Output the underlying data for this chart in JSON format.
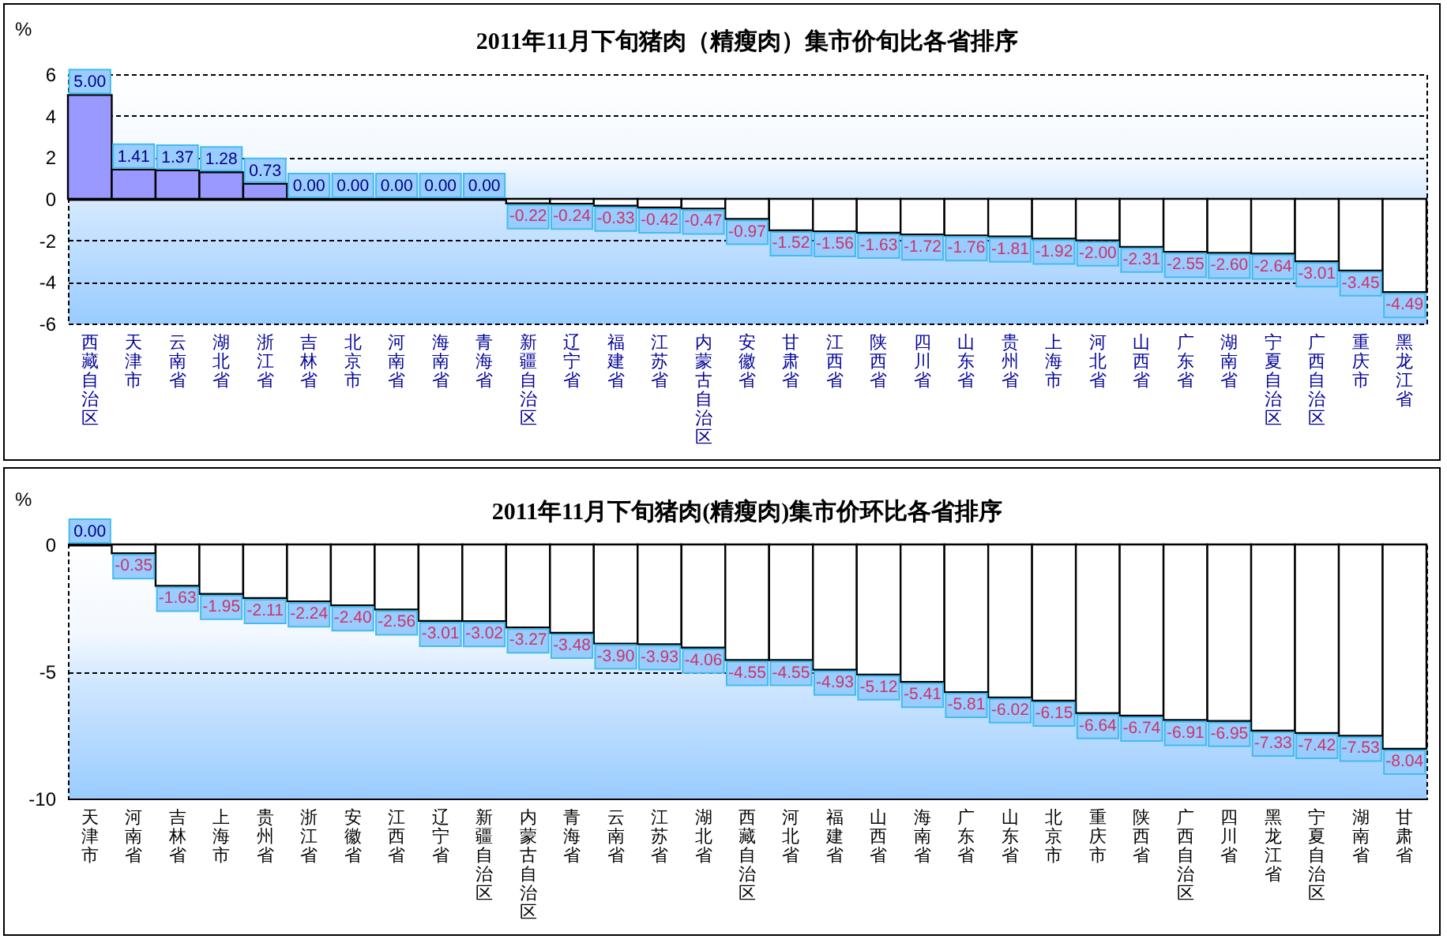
{
  "chart_data": [
    {
      "type": "bar",
      "title": "2011年11月下旬猪肉（精瘦肉）集市价旬比各省排序",
      "ylabel": "%",
      "categories": [
        "西藏自治区",
        "天津市",
        "云南省",
        "湖北省",
        "浙江省",
        "吉林省",
        "北京市",
        "河南省",
        "海南省",
        "青海省",
        "新疆自治区",
        "辽宁省",
        "福建省",
        "江苏省",
        "内蒙古自治区",
        "安徽省",
        "甘肃省",
        "江西省",
        "陕西省",
        "四川省",
        "山东省",
        "贵州省",
        "上海市",
        "河北省",
        "山西省",
        "广东省",
        "湖南省",
        "宁夏自治区",
        "广西自治区",
        "重庆市",
        "黑龙江省"
      ],
      "values": [
        5.0,
        1.41,
        1.37,
        1.28,
        0.73,
        0.0,
        0.0,
        0.0,
        0.0,
        0.0,
        -0.22,
        -0.24,
        -0.33,
        -0.42,
        -0.47,
        -0.97,
        -1.52,
        -1.56,
        -1.63,
        -1.72,
        -1.76,
        -1.81,
        -1.92,
        -2.0,
        -2.31,
        -2.55,
        -2.6,
        -2.64,
        -3.01,
        -3.45,
        -4.49
      ],
      "value_labels": [
        "5.00",
        "1.41",
        "1.37",
        "1.28",
        "0.73",
        "0.00",
        "0.00",
        "0.00",
        "0.00",
        "0.00",
        "-0.22",
        "-0.24",
        "-0.33",
        "-0.42",
        "-0.47",
        "-0.97",
        "-1.52",
        "-1.56",
        "-1.63",
        "-1.72",
        "-1.76",
        "-1.81",
        "-1.92",
        "-2.00",
        "-2.31",
        "-2.55",
        "-2.60",
        "-2.64",
        "-3.01",
        "-3.45",
        "-4.49"
      ],
      "colors": [
        "#9999ff",
        "#9999ff",
        "#9999ff",
        "#9999ff",
        "#9999ff",
        "#000000",
        "#000000",
        "#000000",
        "#000000",
        "#000000",
        "#ffffff",
        "#ffffff",
        "#ffffff",
        "#ffffff",
        "#ffffff",
        "#ffffff",
        "#ffffff",
        "#ffffff",
        "#ffffff",
        "#ffffff",
        "#ffffff",
        "#ffffff",
        "#ffffff",
        "#ffffff",
        "#ffffff",
        "#ffffff",
        "#ffffff",
        "#ffffff",
        "#ffffff",
        "#ffffff",
        "#ffffff"
      ],
      "ylim": [
        -6,
        6
      ],
      "yticks": [
        -6,
        -4,
        -2,
        0,
        2,
        4,
        6
      ],
      "grid": "y"
    },
    {
      "type": "bar",
      "title": "2011年11月下旬猪肉(精瘦肉)集市价环比各省排序",
      "ylabel": "%",
      "categories": [
        "天津市",
        "河南省",
        "吉林省",
        "上海市",
        "贵州省",
        "浙江省",
        "安徽省",
        "江西省",
        "辽宁省",
        "新疆自治区",
        "内蒙古自治区",
        "青海省",
        "云南省",
        "江苏省",
        "湖北省",
        "西藏自治区",
        "河北省",
        "福建省",
        "山西省",
        "海南省",
        "广东省",
        "山东省",
        "北京市",
        "重庆市",
        "陕西省",
        "广西自治区",
        "四川省",
        "黑龙江省",
        "宁夏自治区",
        "湖南省",
        "甘肃省"
      ],
      "values": [
        0.0,
        -0.35,
        -1.63,
        -1.95,
        -2.11,
        -2.24,
        -2.4,
        -2.56,
        -3.01,
        -3.02,
        -3.27,
        -3.48,
        -3.9,
        -3.93,
        -4.06,
        -4.55,
        -4.55,
        -4.93,
        -5.12,
        -5.41,
        -5.81,
        -6.02,
        -6.15,
        -6.64,
        -6.74,
        -6.91,
        -6.95,
        -7.33,
        -7.42,
        -7.53,
        -8.04
      ],
      "value_labels": [
        "0.00",
        "-0.35",
        "-1.63",
        "-1.95",
        "-2.11",
        "-2.24",
        "-2.40",
        "-2.56",
        "-3.01",
        "-3.02",
        "-3.27",
        "-3.48",
        "-3.90",
        "-3.93",
        "-4.06",
        "-4.55",
        "-4.55",
        "-4.93",
        "-5.12",
        "-5.41",
        "-5.81",
        "-6.02",
        "-6.15",
        "-6.64",
        "-6.74",
        "-6.91",
        "-6.95",
        "-7.33",
        "-7.42",
        "-7.53",
        "-8.04"
      ],
      "colors": [
        "#000000",
        "#ffffff",
        "#ffffff",
        "#ffffff",
        "#ffffff",
        "#ffffff",
        "#ffffff",
        "#ffffff",
        "#ffffff",
        "#ffffff",
        "#ffffff",
        "#ffffff",
        "#ffffff",
        "#ffffff",
        "#ffffff",
        "#ffffff",
        "#ffffff",
        "#ffffff",
        "#ffffff",
        "#ffffff",
        "#ffffff",
        "#ffffff",
        "#ffffff",
        "#ffffff",
        "#ffffff",
        "#ffffff",
        "#ffffff",
        "#ffffff",
        "#ffffff",
        "#ffffff",
        "#ffffff"
      ],
      "ylim": [
        -10,
        0
      ],
      "yticks": [
        -10,
        -5,
        0
      ],
      "grid": "y"
    }
  ]
}
